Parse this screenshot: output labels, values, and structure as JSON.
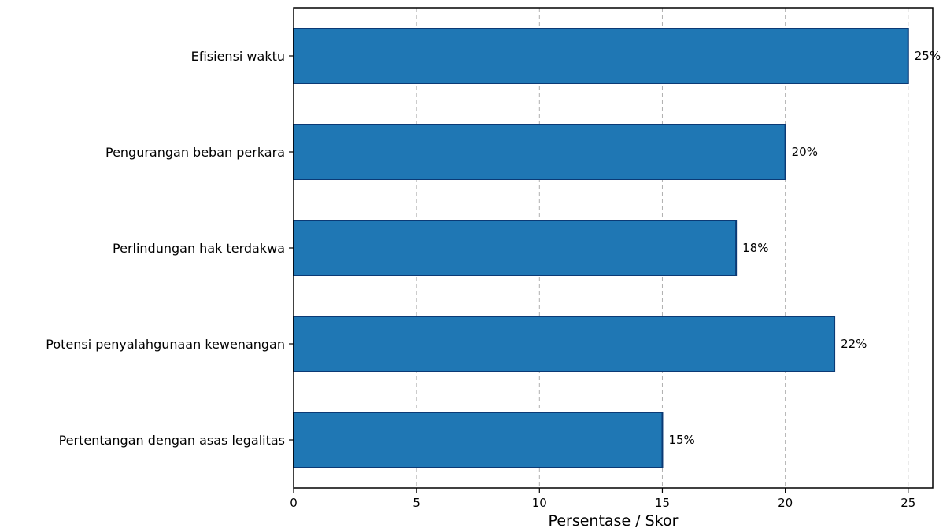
{
  "chart_data": {
    "type": "bar",
    "orientation": "horizontal",
    "categories": [
      "Efisiensi waktu",
      "Pengurangan beban perkara",
      "Perlindungan hak terdakwa",
      "Potensi penyalahgunaan kewenangan",
      "Pertentangan dengan asas legalitas"
    ],
    "values": [
      25,
      20,
      18,
      22,
      15
    ],
    "value_labels": [
      "25%",
      "20%",
      "18%",
      "22%",
      "15%"
    ],
    "title": "",
    "xlabel": "Persentase / Skor",
    "ylabel": "",
    "xlim": [
      0,
      26
    ],
    "xticks": [
      0,
      5,
      10,
      15,
      20,
      25
    ],
    "xtick_labels": [
      "0",
      "5",
      "10",
      "15",
      "20",
      "25"
    ],
    "grid": "x-axis dashed",
    "legend": "none",
    "colors": {
      "bar_fill": "#1f77b4",
      "bar_edge": "#0b3a75",
      "grid": "#b0b0b0",
      "axis": "#000000"
    }
  }
}
